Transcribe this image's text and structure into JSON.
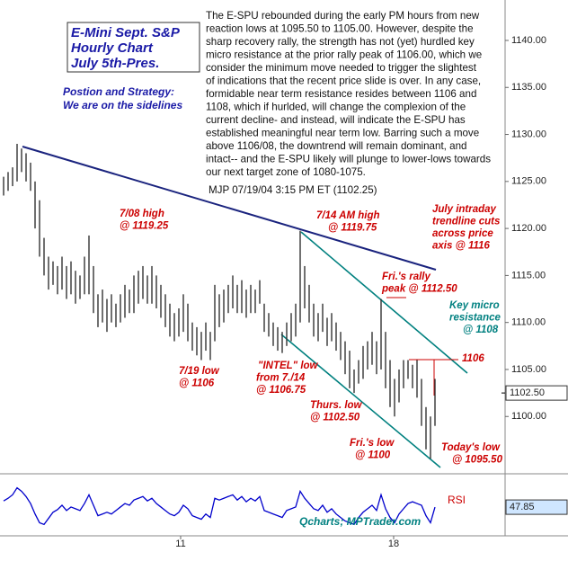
{
  "chart_data": {
    "type": "ohlc",
    "title_lines": [
      "E-Mini Sept. S&P",
      "Hourly Chart",
      "July 5th-Pres."
    ],
    "strategy_lines": [
      "Postion and Strategy:",
      "We are on the sidelines"
    ],
    "commentary_lines": [
      "The E-SPU rebounded during the early PM hours from new",
      "reaction lows at 1095.50 to 1105.00. However, despite the",
      "sharp recovery rally, the strength has not (yet) hurdled key",
      "micro resistance at the prior rally peak of 1106.00, which we",
      "consider the minimum move needed to trigger the slightest",
      "of indications that the recent price slide is over. In any case,",
      "formidable near term resistance resides between 1106 and",
      "1108, which if hurlded, will change the complexion of the",
      "current decline- and instead, will indicate the E-SPU has",
      "established meaningful near term low. Barring such a move",
      "above 1106/08, the downtrend will remain dominant, and",
      "intact-- and the E-SPU likely will plunge to lower-lows towards",
      "our next target zone of 1080-1075."
    ],
    "signature": "MJP 07/19/04 3:15 PM ET (1102.25)",
    "annotations": [
      {
        "lines": [
          "7/08 high",
          "@ 1119.25"
        ],
        "color": "#cc0000"
      },
      {
        "lines": [
          "7/14 AM high",
          "@ 1119.75"
        ],
        "color": "#cc0000"
      },
      {
        "lines": [
          "July intraday",
          "trendline cuts",
          "across price",
          "axis @ 1116"
        ],
        "color": "#cc0000"
      },
      {
        "lines": [
          "Fri.'s rally",
          "peak @ 1112.50"
        ],
        "color": "#cc0000"
      },
      {
        "lines": [
          "Key micro",
          "resistance",
          "@ 1108"
        ],
        "color": "#008080"
      },
      {
        "lines": [
          "1106"
        ],
        "color": "#cc0000"
      },
      {
        "lines": [
          "7/19 low",
          "@ 1106"
        ],
        "color": "#cc0000"
      },
      {
        "lines": [
          "\"INTEL\" low",
          "from 7./14",
          "@ 1106.75"
        ],
        "color": "#cc0000"
      },
      {
        "lines": [
          "Thurs. low",
          "@ 1102.50"
        ],
        "color": "#cc0000"
      },
      {
        "lines": [
          "Fri.'s low",
          "@ 1100"
        ],
        "color": "#cc0000"
      },
      {
        "lines": [
          "Today's low",
          "@ 1095.50"
        ],
        "color": "#cc0000"
      }
    ],
    "credit": "Qcharts; MPTrader.com",
    "bar_color": "#333333",
    "xlim": [
      -0.8,
      111.6
    ],
    "xticks": [
      {
        "value": 39.4,
        "label": "11"
      },
      {
        "value": 86.8,
        "label": "18"
      }
    ],
    "ylim": [
      1094,
      1144.3
    ],
    "yticks": [
      {
        "value": 1100,
        "label": "1100.00"
      },
      {
        "value": 1105,
        "label": "1105.00"
      },
      {
        "value": 1110,
        "label": "1110.00"
      },
      {
        "value": 1115,
        "label": "1115.00"
      },
      {
        "value": 1120,
        "label": "1120.00"
      },
      {
        "value": 1125,
        "label": "1125.00"
      },
      {
        "value": 1130,
        "label": "1130.00"
      },
      {
        "value": 1135,
        "label": "1135.00"
      },
      {
        "value": 1140,
        "label": "1140.00"
      }
    ],
    "high": [
      1125.5,
      1126,
      1126.5,
      1129,
      1128.5,
      1128,
      1127,
      1125,
      1123,
      1119,
      1117,
      1116.5,
      1116,
      1117,
      1116,
      1116.5,
      1115.5,
      1115,
      1117,
      1119.25,
      1116,
      1113,
      1113.5,
      1112.5,
      1113,
      1112,
      1113,
      1114,
      1113.5,
      1115,
      1115.5,
      1116,
      1115,
      1116,
      1115,
      1114,
      1113,
      1112,
      1111,
      1111.5,
      1113,
      1112,
      1110,
      1109.5,
      1109,
      1110,
      1109,
      1114,
      1113,
      1113.5,
      1114,
      1115,
      1114,
      1114.5,
      1113.5,
      1114,
      1113.5,
      1114.5,
      1112,
      1111,
      1110,
      1109.5,
      1109,
      1110,
      1111,
      1112,
      1119.75,
      1116,
      1114,
      1112,
      1111,
      1112,
      1110.5,
      1111,
      1110,
      1109,
      1108,
      1107,
      1105,
      1106,
      1107.5,
      1108,
      1109,
      1108,
      1112.5,
      1109,
      1106,
      1104,
      1105,
      1106,
      1106,
      1105.5,
      1106,
      1104,
      1101,
      1100,
      1104
    ],
    "low": [
      1123.5,
      1124,
      1124.5,
      1125,
      1126,
      1125,
      1124,
      1120,
      1117,
      1115,
      1113.5,
      1114,
      1113,
      1113.5,
      1112.5,
      1113,
      1112,
      1112.5,
      1113,
      1113,
      1111,
      1109.5,
      1110,
      1109,
      1110,
      1109.5,
      1110,
      1110.5,
      1111,
      1111,
      1112,
      1112.5,
      1112,
      1112,
      1111.5,
      1110.5,
      1109.5,
      1108.5,
      1108,
      1108.5,
      1109,
      1108,
      1107,
      1106.5,
      1106,
      1107,
      1106,
      1108,
      1109.5,
      1110,
      1111,
      1111.5,
      1111,
      1111,
      1110.5,
      1111,
      1111,
      1112,
      1109,
      1108.5,
      1107.5,
      1107,
      1106.75,
      1107.5,
      1108,
      1108.5,
      1110,
      1111.5,
      1110,
      1108.5,
      1108,
      1109,
      1107.5,
      1108,
      1107,
      1106,
      1104.5,
      1103,
      1102.5,
      1103.5,
      1104,
      1105,
      1105.5,
      1104.5,
      1105,
      1103,
      1101,
      1100,
      1101.5,
      1103,
      1104,
      1103,
      1102,
      1099,
      1096.5,
      1095.5,
      1099
    ],
    "last_price": {
      "value": 1102.5,
      "label": "1102.50"
    },
    "rsi": {
      "label": "RSI",
      "color": "#0000cc",
      "ylim": [
        15,
        85
      ],
      "values": [
        55,
        58,
        62,
        70,
        66,
        60,
        52,
        40,
        30,
        28,
        35,
        42,
        45,
        50,
        44,
        48,
        46,
        44,
        52,
        62,
        50,
        38,
        40,
        42,
        40,
        44,
        48,
        52,
        50,
        56,
        58,
        60,
        55,
        58,
        52,
        48,
        44,
        40,
        38,
        42,
        50,
        46,
        38,
        36,
        34,
        40,
        36,
        58,
        56,
        58,
        60,
        62,
        56,
        60,
        54,
        58,
        55,
        60,
        44,
        42,
        40,
        38,
        36,
        44,
        46,
        48,
        66,
        58,
        52,
        46,
        44,
        50,
        42,
        46,
        40,
        36,
        32,
        30,
        28,
        36,
        42,
        46,
        50,
        44,
        62,
        46,
        36,
        30,
        40,
        46,
        52,
        54,
        52,
        50,
        38,
        30,
        47.85
      ]
    }
  }
}
